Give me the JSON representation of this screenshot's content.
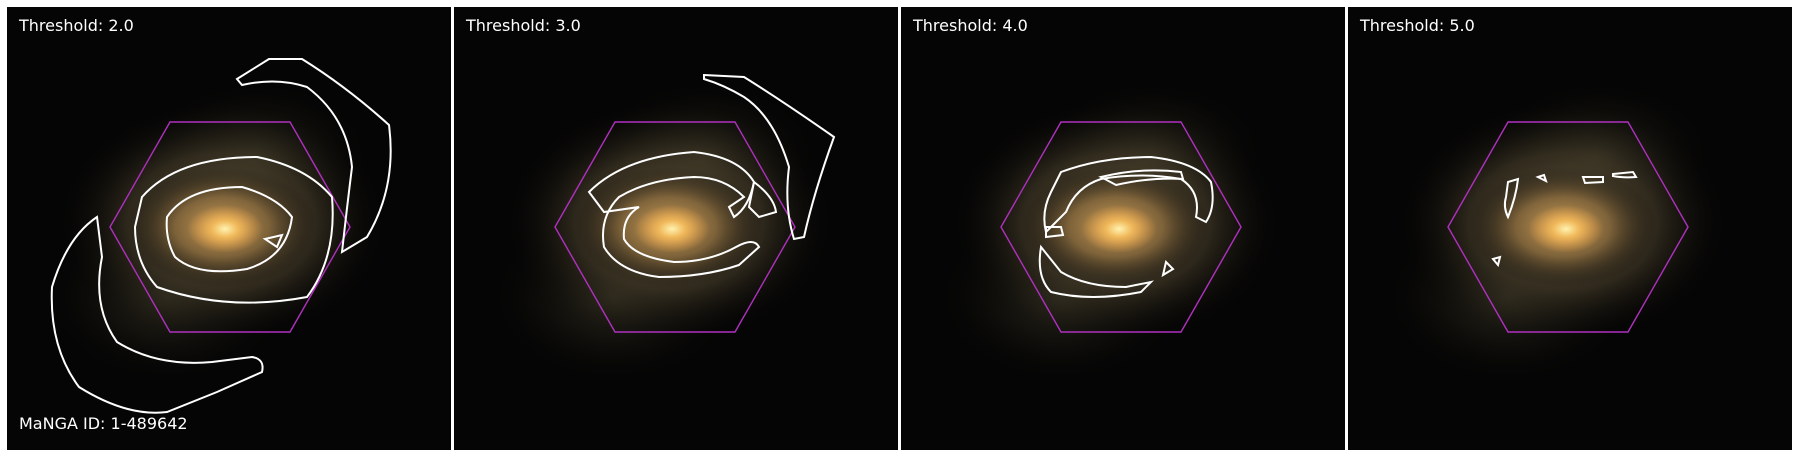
{
  "figure": {
    "panels": [
      {
        "threshold_label": "Threshold: 2.0"
      },
      {
        "threshold_label": "Threshold: 3.0"
      },
      {
        "threshold_label": "Threshold: 4.0"
      },
      {
        "threshold_label": "Threshold: 5.0"
      }
    ],
    "galaxy_id_label": "MaNGA ID: 1-489642",
    "colors": {
      "hexagon": "#b030c0",
      "contour": "#ffffff",
      "background": "#000000"
    }
  }
}
